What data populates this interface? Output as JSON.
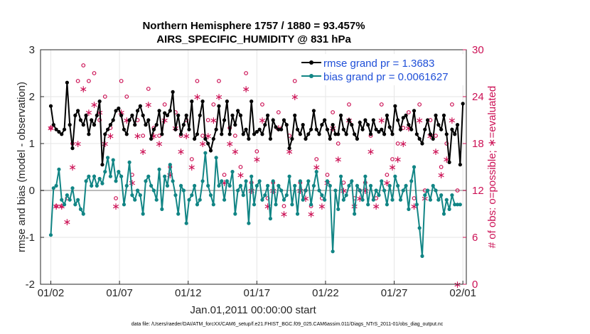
{
  "chart_data": {
    "type": "line",
    "title": "Northern Hemisphere 1757 / 1880 = 93.457%",
    "subtitle": "AIRS_SPECIFIC_HUMIDITY @ 831 hPa",
    "xlabel": "Jan.01,2011 00:00:00 start",
    "ylabel": "rmse and bias (model - observation)",
    "y2label": "# of obs: o=possible; ∗=evaluated",
    "footnote": "data file: /Users/raeder/DAI/ATM_forcXX/CAM6_setup/f.e21.FHIST_BGC.f09_025.CAM6assim.011/Diags_NTrS_2011-01/obs_diag_output.nc",
    "x_ticks": [
      "01/02",
      "01/07",
      "01/12",
      "01/17",
      "01/22",
      "01/27",
      "02/01"
    ],
    "x_tick_days": [
      1,
      6,
      11,
      16,
      21,
      26,
      31
    ],
    "xlim": [
      0.25,
      31.25
    ],
    "ylim": [
      -2,
      3
    ],
    "y_ticks": [
      "-2",
      "-1",
      "0",
      "1",
      "2",
      "3"
    ],
    "y2lim": [
      0,
      30
    ],
    "y2_ticks": [
      "0",
      "6",
      "12",
      "18",
      "24",
      "30"
    ],
    "colors": {
      "rmse": "#000000",
      "bias": "#118585",
      "obs": "#cc1155",
      "legend_text": "#1f4fd8",
      "zero_line": "#bbbbbb"
    },
    "series": [
      {
        "name": "rmse grand pr = 1.3683",
        "values": [
          1.8,
          1.4,
          1.3,
          1.25,
          1.2,
          1.3,
          2.3,
          1.4,
          0.9,
          1.6,
          1.7,
          1.5,
          1.4,
          1.6,
          1.2,
          1.5,
          1.4,
          1.6,
          1.9,
          0.55,
          1.2,
          1.3,
          1.4,
          1.5,
          1.7,
          1.75,
          1.6,
          1.3,
          1.2,
          1.5,
          1.6,
          1.4,
          1.7,
          1.8,
          1.6,
          1.4,
          1.5,
          1.1,
          1.3,
          1.4,
          1.7,
          1.2,
          1.65,
          1.6,
          1.7,
          2.1,
          1.3,
          1.6,
          1.2,
          1.4,
          1.6,
          1.3,
          1.9,
          1.1,
          1.2,
          1.6,
          1.9,
          1.1,
          1.0,
          0.85,
          1.1,
          1.3,
          1.8,
          1.2,
          1.5,
          1.9,
          1.2,
          1.6,
          1.4,
          1.7,
          1.6,
          1.2,
          1.3,
          1.1,
          1.9,
          1.2,
          1.25,
          1.3,
          1.2,
          1.4,
          1.6,
          1.1,
          1.5,
          1.35,
          1.3,
          1.3,
          1.5,
          1.4,
          0.9,
          1.1,
          1.6,
          1.3,
          1.2,
          1.4,
          1.1,
          1.2,
          1.3,
          1.7,
          1.3,
          1.2,
          1.4,
          1.5,
          1.3,
          1.1,
          1.4,
          1.2,
          1.2,
          1.6,
          1.3,
          1.2,
          1.5,
          1.4,
          1.2,
          1.1,
          1.45,
          1.3,
          1.5,
          1.4,
          1.2,
          1.5,
          1.3,
          1.25,
          1.3,
          1.2,
          1.6,
          1.35,
          1.2,
          1.8,
          1.5,
          1.3,
          1.55,
          1.6,
          1.4,
          1.3,
          1.7,
          1.2,
          1.1,
          1.0,
          1.3,
          1.5,
          1.2,
          1.1,
          1.6,
          1.4,
          1.3,
          1.6,
          1.2,
          0.6,
          1.3,
          1.2,
          1.4,
          0.55,
          1.85
        ],
        "marker": "dot",
        "color": "#000000"
      },
      {
        "name": "bias grand pr = 0.0061627",
        "values": [
          -0.95,
          0.05,
          0.1,
          0.45,
          -0.2,
          -0.3,
          -0.1,
          -0.2,
          0.05,
          -0.3,
          -0.2,
          -0.4,
          -0.5,
          0.2,
          0.3,
          0.1,
          0.3,
          0.1,
          0.25,
          0.15,
          0.4,
          0.7,
          0.3,
          0.65,
          0.2,
          0.4,
          0.3,
          -0.3,
          0.1,
          0.6,
          -0.1,
          -0.2,
          0.0,
          -0.1,
          -0.5,
          0.2,
          0.3,
          0.1,
          0.0,
          -0.2,
          0.45,
          -0.4,
          0.3,
          0.1,
          0.55,
          0.2,
          -0.1,
          -0.5,
          0.1,
          0.0,
          -0.7,
          -0.2,
          -0.1,
          0.1,
          -0.3,
          -0.2,
          0.2,
          0.8,
          0.1,
          -0.1,
          -0.3,
          0.7,
          0.1,
          0.2,
          -0.2,
          0.2,
          0.1,
          0.4,
          -0.5,
          0.0,
          0.1,
          -0.1,
          0.2,
          -0.7,
          0.3,
          -0.3,
          0.1,
          0.2,
          -0.2,
          -0.1,
          0.1,
          -0.6,
          0.2,
          -0.3,
          0.1,
          0.0,
          -0.2,
          -0.1,
          0.3,
          -0.3,
          0.1,
          -0.5,
          0.2,
          -0.2,
          0.0,
          0.2,
          -0.3,
          0.1,
          0.4,
          0.0,
          -0.1,
          -0.2,
          0.2,
          0.1,
          -1.3,
          0.0,
          -0.4,
          0.3,
          -0.2,
          -0.1,
          0.1,
          0.2,
          -0.5,
          0.1,
          0.0,
          -0.2,
          0.3,
          -0.3,
          0.1,
          -0.2,
          0.0,
          -0.1,
          0.2,
          0.0,
          -0.3,
          0.1,
          -0.2,
          0.3,
          0.1,
          -0.2,
          0.0,
          0.1,
          -0.4,
          0.2,
          0.5,
          -0.3,
          -0.8,
          -1.4,
          -0.1,
          0.0,
          -0.2,
          0.1,
          0.0,
          -0.2,
          -0.1,
          -0.5,
          -0.2,
          -0.4,
          -0.1,
          -0.3,
          -0.3,
          -0.3
        ],
        "marker": "dot",
        "color": "#118585"
      }
    ],
    "obs_possible": [
      20,
      21,
      10,
      12,
      10,
      19,
      11,
      13,
      18,
      13,
      26,
      25,
      28,
      15,
      26,
      21,
      27,
      26,
      21,
      9,
      24,
      12,
      20,
      13,
      11,
      19,
      26,
      11,
      24,
      12,
      14,
      22,
      21,
      17,
      19,
      13,
      25,
      22,
      20,
      13,
      19,
      17,
      23,
      12,
      15,
      24,
      22,
      17,
      19,
      9,
      21,
      14,
      16,
      14,
      26,
      21,
      19,
      17,
      21,
      12,
      23,
      11,
      26,
      21,
      14,
      11,
      20,
      23,
      19,
      10,
      15,
      22,
      27,
      19,
      13,
      21,
      17,
      20,
      23,
      16,
      11,
      25,
      13,
      18,
      22,
      14,
      10,
      12,
      19,
      12,
      26,
      21,
      13,
      16,
      12,
      27,
      10,
      19,
      16,
      22,
      11,
      21,
      14,
      17,
      22,
      11,
      18,
      9,
      13,
      19,
      23,
      16,
      11,
      22,
      12,
      18,
      13,
      14,
      19,
      22,
      11,
      17,
      23,
      12,
      14,
      21,
      16,
      12,
      18,
      10,
      20,
      13,
      22,
      17,
      11,
      20,
      23,
      14,
      12,
      17,
      21,
      13,
      19,
      16,
      15,
      11,
      18,
      20,
      23,
      13,
      12
    ],
    "obs_evaluated": [
      20,
      11,
      10,
      17,
      10,
      9,
      8,
      11,
      15,
      15,
      18,
      26,
      25,
      24,
      22,
      19,
      23,
      20,
      22,
      8,
      18,
      11,
      19,
      12,
      10,
      18,
      22,
      10,
      21,
      11,
      13,
      20,
      19,
      16,
      17,
      12,
      23,
      21,
      19,
      12,
      18,
      16,
      21,
      11,
      14,
      22,
      20,
      16,
      17,
      6,
      19,
      13,
      15,
      13,
      24,
      20,
      18,
      16,
      19,
      11,
      21,
      10,
      24,
      20,
      13,
      10,
      18,
      21,
      17,
      9,
      14,
      20,
      25,
      17,
      12,
      19,
      16,
      18,
      21,
      15,
      10,
      23,
      12,
      16,
      20,
      13,
      9,
      11,
      17,
      11,
      24,
      19,
      12,
      15,
      11,
      25,
      9,
      17,
      15,
      20,
      10,
      19,
      13,
      16,
      20,
      10,
      16,
      8,
      12,
      17,
      21,
      15,
      10,
      20,
      11,
      16,
      12,
      13,
      17,
      20,
      10,
      16,
      21,
      11,
      13,
      19,
      15,
      11,
      16,
      9,
      18,
      12,
      20,
      16,
      10,
      18,
      21,
      13,
      11,
      16,
      19,
      12,
      17,
      15,
      14,
      10,
      16,
      18,
      21,
      12,
      0
    ]
  }
}
